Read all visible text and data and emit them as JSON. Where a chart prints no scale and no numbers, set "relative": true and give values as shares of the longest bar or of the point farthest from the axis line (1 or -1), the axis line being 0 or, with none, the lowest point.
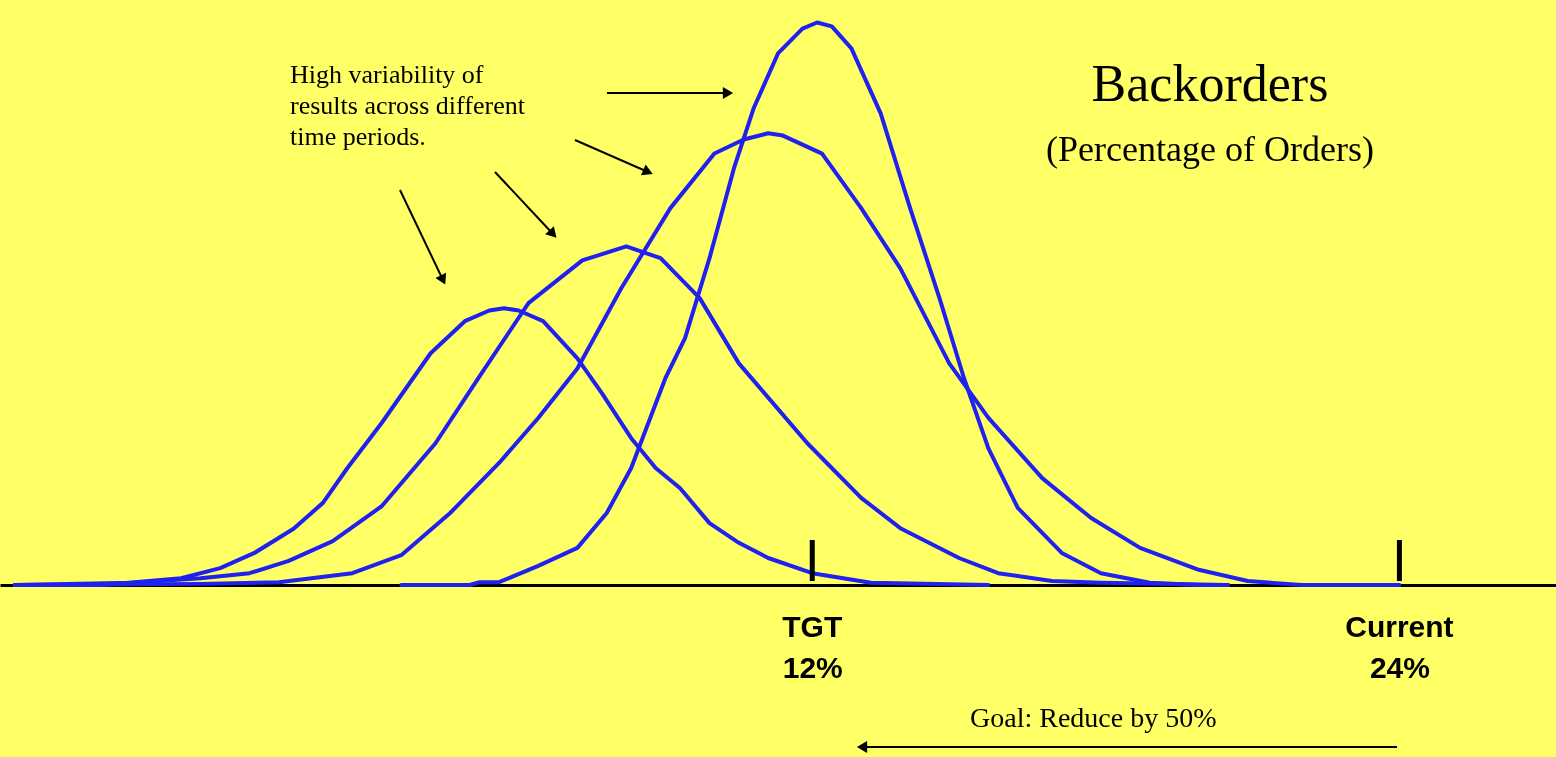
{
  "chart_data": {
    "type": "line",
    "title": "Backorders",
    "subtitle": "(Percentage of Orders)",
    "relative": true,
    "xlim": [
      -4.6,
      27.2
    ],
    "xticks": [
      {
        "value": 12,
        "label": "12%"
      },
      {
        "value": 24,
        "label": "24%"
      }
    ],
    "ref_lines": [
      {
        "axis": "x",
        "value": 12,
        "label": "TGT",
        "color": "#000000"
      },
      {
        "axis": "x",
        "value": 24,
        "label": "Current",
        "color": "#000000"
      }
    ],
    "annotations": [
      "High variability of\nresults across different\ntime periods.",
      "Goal: Reduce by 50%"
    ],
    "series": [
      {
        "color": "#2020f0",
        "x": [
          -4.3,
          -2.5,
          -0.9,
          -0.1,
          0.6,
          1.4,
          2.0,
          2.5,
          3.2,
          4.2,
          4.9,
          5.4,
          5.7,
          6.0,
          6.5,
          7.2,
          7.7,
          8.3,
          8.8,
          9.3,
          9.9,
          10.5,
          11.1,
          12.0,
          13.2,
          15.6
        ],
        "values": [
          0,
          0,
          0.012,
          0.03,
          0.057,
          0.1,
          0.146,
          0.208,
          0.288,
          0.412,
          0.469,
          0.488,
          0.492,
          0.488,
          0.469,
          0.403,
          0.341,
          0.261,
          0.208,
          0.172,
          0.11,
          0.075,
          0.048,
          0.021,
          0.004,
          0
        ]
      },
      {
        "color": "#2020f0",
        "x": [
          -4.3,
          -1.9,
          -0.5,
          0.5,
          1.3,
          2.2,
          3.2,
          4.3,
          5.2,
          6.2,
          7.3,
          8.2,
          8.9,
          9.7,
          10.5,
          11.9,
          13.0,
          13.8,
          15.0,
          15.8,
          16.9,
          17.9,
          20.5
        ],
        "values": [
          0,
          0.004,
          0.012,
          0.021,
          0.043,
          0.078,
          0.14,
          0.252,
          0.371,
          0.501,
          0.577,
          0.602,
          0.581,
          0.51,
          0.394,
          0.252,
          0.155,
          0.101,
          0.048,
          0.021,
          0.007,
          0.004,
          0
        ]
      },
      {
        "color": "#2020f0",
        "x": [
          -4.3,
          -0.5,
          1.1,
          2.6,
          3.6,
          4.6,
          5.6,
          6.4,
          7.2,
          8.1,
          9.1,
          10.0,
          10.6,
          11.1,
          11.4,
          12.2,
          13.0,
          13.8,
          14.8,
          15.6,
          16.7,
          17.7,
          18.7,
          19.9,
          20.9,
          22.0,
          24.0
        ],
        "values": [
          0,
          0.002,
          0.005,
          0.021,
          0.053,
          0.128,
          0.217,
          0.297,
          0.385,
          0.528,
          0.67,
          0.767,
          0.792,
          0.803,
          0.799,
          0.767,
          0.67,
          0.563,
          0.394,
          0.297,
          0.19,
          0.119,
          0.066,
          0.027,
          0.007,
          0,
          0
        ]
      },
      {
        "color": "#2020f0",
        "x": [
          3.6,
          5.0,
          5.2,
          5.6,
          6.4,
          7.2,
          7.8,
          8.3,
          9.0,
          9.4,
          9.9,
          10.4,
          10.8,
          11.3,
          11.8,
          12.1,
          12.4,
          12.8,
          13.4,
          14.0,
          14.6,
          15.1,
          15.6,
          16.2,
          17.1,
          17.9,
          18.9,
          19.9,
          20.5
        ],
        "values": [
          0,
          0,
          0.005,
          0.005,
          0.034,
          0.066,
          0.128,
          0.208,
          0.368,
          0.439,
          0.581,
          0.741,
          0.847,
          0.945,
          0.989,
          1,
          0.993,
          0.954,
          0.838,
          0.67,
          0.51,
          0.368,
          0.243,
          0.137,
          0.057,
          0.021,
          0.004,
          0,
          0
        ]
      }
    ]
  }
}
